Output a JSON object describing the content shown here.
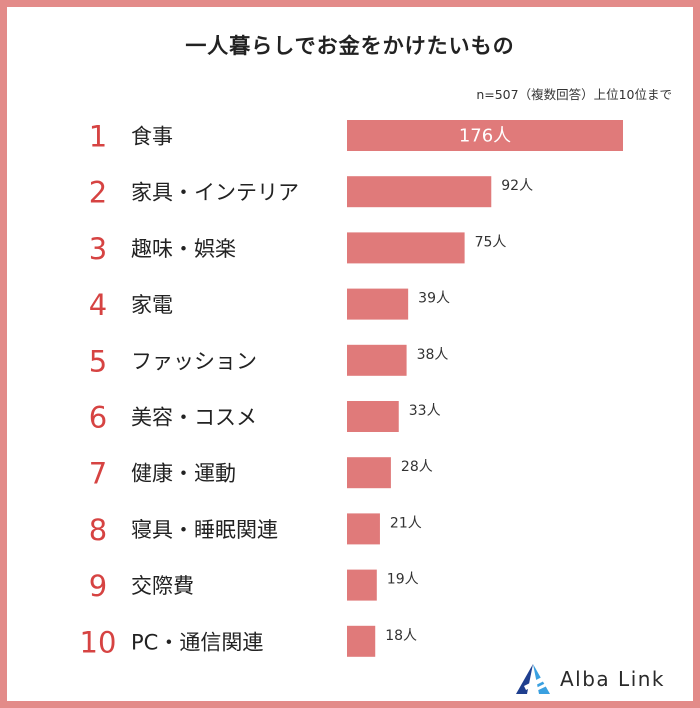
{
  "chart_data": {
    "type": "bar",
    "orientation": "horizontal",
    "title": "一人暮らしでお金をかけたいもの",
    "note": "n=507（複数回答）上位10位まで",
    "ranks": [
      "1",
      "2",
      "3",
      "4",
      "5",
      "6",
      "7",
      "8",
      "9",
      "10"
    ],
    "categories": [
      "食事",
      "家具・インテリア",
      "趣味・娯楽",
      "家電",
      "ファッション",
      "美容・コスメ",
      "健康・運動",
      "寝具・睡眠関連",
      "交際費",
      "PC・通信関連"
    ],
    "values": [
      176,
      92,
      75,
      39,
      38,
      33,
      28,
      21,
      19,
      18
    ],
    "value_labels": [
      "176人",
      "92人",
      "75人",
      "39人",
      "38人",
      "33人",
      "28人",
      "21人",
      "19人",
      "18人"
    ],
    "bar_color": "#e07a7a",
    "rank_color": "#d64342",
    "xlim": [
      0,
      176
    ],
    "grid": false
  },
  "colors": {
    "frame": "#e38b89",
    "logo_dark": "#1f3f8f",
    "logo_light": "#3aa0e0"
  },
  "logo": {
    "text": "Alba Link",
    "icon": "alba-link-logo-icon"
  }
}
